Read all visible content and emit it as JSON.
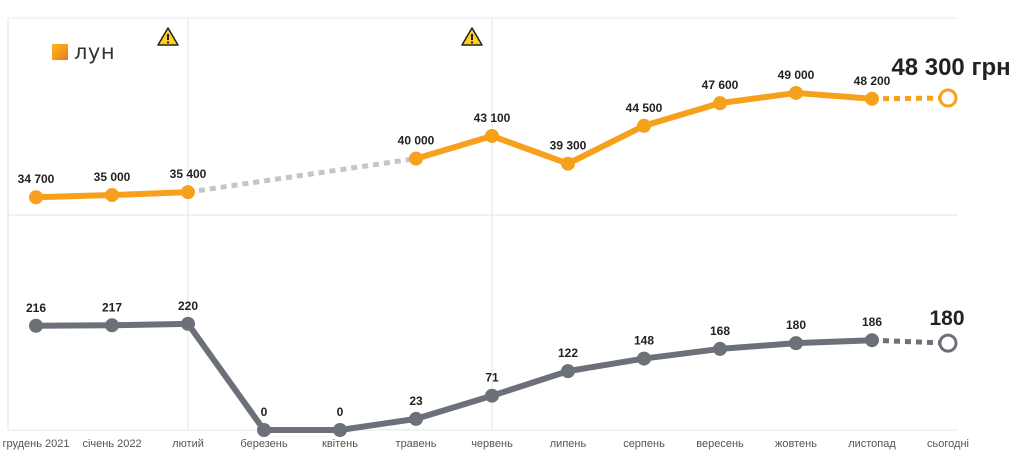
{
  "brand": {
    "name": "лун",
    "color": "#f7941d"
  },
  "chart_data": {
    "type": "line",
    "categories": [
      "грудень 2021",
      "січень 2022",
      "лютий",
      "березень",
      "квітень",
      "травень",
      "червень",
      "липень",
      "серпень",
      "вересень",
      "жовтень",
      "листопад",
      "сьогодні"
    ],
    "series": [
      {
        "color": "#f7a01b",
        "values": [
          34700,
          35000,
          35400,
          null,
          null,
          40000,
          43100,
          39300,
          44500,
          47600,
          49000,
          48200,
          48300
        ],
        "labels": [
          "34 700",
          "35 000",
          "35 400",
          "",
          "",
          "40 000",
          "43 100",
          "39 300",
          "44 500",
          "47 600",
          "49 000",
          "48 200",
          "48 300 грн"
        ],
        "gap_after": 2,
        "gap_before": 5,
        "dashed_last": true,
        "ylim": [
          33500,
          50500
        ]
      },
      {
        "color": "#6b7079",
        "values": [
          216,
          217,
          220,
          0,
          0,
          23,
          71,
          122,
          148,
          168,
          180,
          186,
          180
        ],
        "labels": [
          "216",
          "217",
          "220",
          "0",
          "0",
          "23",
          "71",
          "122",
          "148",
          "168",
          "180",
          "186",
          "180"
        ],
        "dashed_last": true,
        "ylim": [
          0,
          230
        ]
      }
    ],
    "warnings": [
      {
        "after_index": 2,
        "icon": "warning-icon"
      },
      {
        "after_index": 6,
        "icon": "warning-icon"
      }
    ],
    "grid": true
  }
}
